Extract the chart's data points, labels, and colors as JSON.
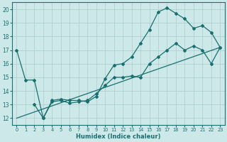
{
  "xlabel": "Humidex (Indice chaleur)",
  "background_color": "#cce8e8",
  "line_color": "#1a7070",
  "xlim": [
    -0.5,
    23.5
  ],
  "ylim": [
    11.5,
    20.5
  ],
  "xticks": [
    0,
    1,
    2,
    3,
    4,
    5,
    6,
    7,
    8,
    9,
    10,
    11,
    12,
    13,
    14,
    15,
    16,
    17,
    18,
    19,
    20,
    21,
    22,
    23
  ],
  "yticks": [
    12,
    13,
    14,
    15,
    16,
    17,
    18,
    19,
    20
  ],
  "series1_x": [
    0,
    1,
    2,
    3,
    4,
    5,
    6,
    7,
    8,
    9,
    10,
    11,
    12,
    13,
    14,
    15,
    16,
    17,
    18,
    19,
    20,
    21,
    22,
    23
  ],
  "series1_y": [
    17.0,
    14.8,
    14.8,
    12.0,
    13.3,
    13.4,
    13.3,
    13.3,
    13.2,
    13.6,
    14.9,
    15.9,
    16.0,
    16.5,
    17.5,
    18.5,
    19.8,
    20.1,
    19.7,
    19.3,
    18.6,
    18.8,
    18.3,
    17.2
  ],
  "series2_x": [
    2,
    3,
    4,
    5,
    6,
    7,
    8,
    9,
    10,
    11,
    12,
    13,
    14,
    15,
    16,
    17,
    18,
    19,
    20,
    21,
    22,
    23
  ],
  "series2_y": [
    13.0,
    12.0,
    13.2,
    13.3,
    13.1,
    13.2,
    13.3,
    13.8,
    14.4,
    15.0,
    15.0,
    15.1,
    15.0,
    16.0,
    16.5,
    17.0,
    17.5,
    17.0,
    17.3,
    17.0,
    16.0,
    17.2
  ],
  "series3_x": [
    0,
    23
  ],
  "series3_y": [
    12.0,
    17.2
  ]
}
